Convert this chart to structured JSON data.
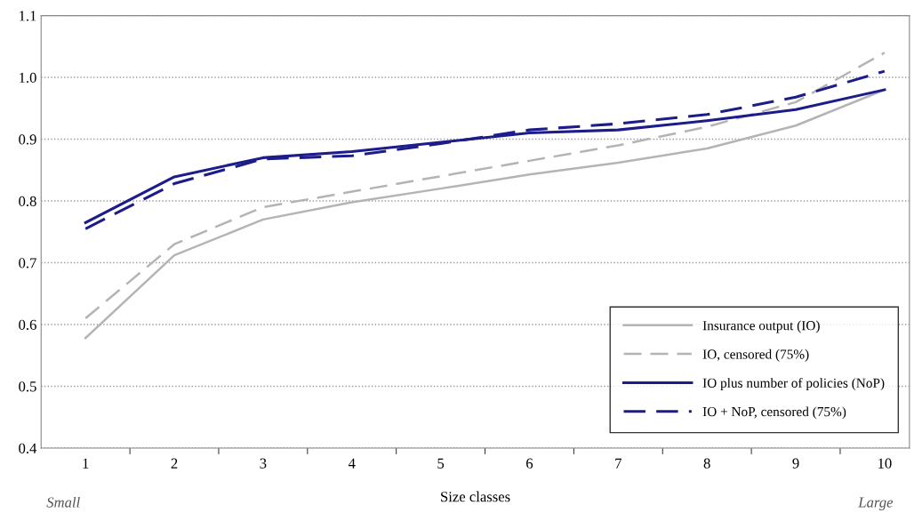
{
  "chart_data": {
    "type": "line",
    "xlabel": "Size classes",
    "categories": [
      "1",
      "2",
      "3",
      "4",
      "5",
      "6",
      "7",
      "8",
      "9",
      "10"
    ],
    "series": [
      {
        "name": "Insurance output (IO)",
        "color": "#b4b4b4",
        "line_style": "solid",
        "values": [
          0.578,
          0.712,
          0.77,
          0.798,
          0.82,
          0.843,
          0.862,
          0.885,
          0.922,
          0.98
        ]
      },
      {
        "name": "IO, censored (75%)",
        "color": "#b4b4b4",
        "line_style": "dashed",
        "values": [
          0.61,
          0.73,
          0.79,
          0.815,
          0.84,
          0.865,
          0.89,
          0.92,
          0.96,
          1.04
        ]
      },
      {
        "name": "IO plus number of policies (NoP)",
        "color": "#1c1c8a",
        "line_style": "solid",
        "values": [
          0.765,
          0.839,
          0.87,
          0.88,
          0.895,
          0.91,
          0.915,
          0.93,
          0.948,
          0.98
        ]
      },
      {
        "name": "IO + NoP, censored (75%)",
        "color": "#1c1c8a",
        "line_style": "dashed",
        "values": [
          0.755,
          0.828,
          0.868,
          0.873,
          0.893,
          0.915,
          0.925,
          0.94,
          0.968,
          1.01
        ]
      }
    ],
    "ylim": [
      0.4,
      1.1
    ],
    "yticks": [
      {
        "value": 0.4,
        "label": "0.4"
      },
      {
        "value": 0.5,
        "label": "0.5"
      },
      {
        "value": 0.6,
        "label": "0.6"
      },
      {
        "value": 0.7,
        "label": "0.7"
      },
      {
        "value": 0.8,
        "label": "0.8"
      },
      {
        "value": 0.9,
        "label": "0.9"
      },
      {
        "value": 1.0,
        "label": "1.0"
      },
      {
        "value": 1.1,
        "label": "1.1"
      }
    ],
    "grid": "y",
    "legend": "bottom right",
    "marker": "none",
    "annotations": [
      "Small",
      "Large"
    ]
  }
}
